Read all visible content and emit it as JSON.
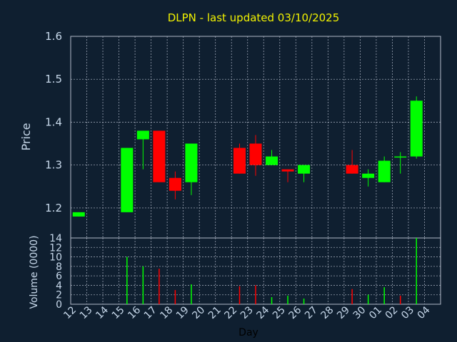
{
  "title": "DLPN - last updated 03/10/2025",
  "colors": {
    "background": "#0f1f30",
    "up": "#00ff00",
    "down": "#ff0000",
    "grid": "#b0b8c8",
    "axis": "#c7d8ea",
    "title": "#f2f200"
  },
  "chart_data": [
    {
      "type": "candlestick",
      "ylabel": "Price",
      "ylim": [
        1.13,
        1.6
      ],
      "yticks": [
        1.2,
        1.3,
        1.4,
        1.5,
        1.6
      ],
      "grid": true,
      "categories": [
        "12",
        "13",
        "14",
        "15",
        "16",
        "17",
        "18",
        "19",
        "20",
        "21",
        "22",
        "23",
        "24",
        "25",
        "26",
        "27",
        "28",
        "29",
        "30",
        "01",
        "02",
        "03",
        "04"
      ],
      "candles": [
        {
          "x": "12",
          "open": 1.18,
          "high": 1.19,
          "low": 1.18,
          "close": 1.19
        },
        {
          "x": "15",
          "open": 1.19,
          "high": 1.34,
          "low": 1.19,
          "close": 1.34
        },
        {
          "x": "16",
          "open": 1.36,
          "high": 1.38,
          "low": 1.29,
          "close": 1.38
        },
        {
          "x": "17",
          "open": 1.38,
          "high": 1.38,
          "low": 1.26,
          "close": 1.26
        },
        {
          "x": "18",
          "open": 1.27,
          "high": 1.285,
          "low": 1.22,
          "close": 1.24
        },
        {
          "x": "19",
          "open": 1.26,
          "high": 1.35,
          "low": 1.23,
          "close": 1.35
        },
        {
          "x": "22",
          "open": 1.34,
          "high": 1.35,
          "low": 1.28,
          "close": 1.28
        },
        {
          "x": "23",
          "open": 1.35,
          "high": 1.37,
          "low": 1.275,
          "close": 1.3
        },
        {
          "x": "24",
          "open": 1.3,
          "high": 1.335,
          "low": 1.3,
          "close": 1.32
        },
        {
          "x": "25",
          "open": 1.29,
          "high": 1.29,
          "low": 1.26,
          "close": 1.285
        },
        {
          "x": "26",
          "open": 1.28,
          "high": 1.3,
          "low": 1.26,
          "close": 1.3
        },
        {
          "x": "29",
          "open": 1.3,
          "high": 1.335,
          "low": 1.28,
          "close": 1.28
        },
        {
          "x": "30",
          "open": 1.27,
          "high": 1.29,
          "low": 1.25,
          "close": 1.28
        },
        {
          "x": "01",
          "open": 1.26,
          "high": 1.32,
          "low": 1.26,
          "close": 1.31
        },
        {
          "x": "02",
          "open": 1.32,
          "high": 1.33,
          "low": 1.28,
          "close": 1.32
        },
        {
          "x": "03",
          "open": 1.32,
          "high": 1.46,
          "low": 1.315,
          "close": 1.45
        }
      ]
    },
    {
      "type": "bar",
      "ylabel": "Volume (0000)",
      "xlabel": "Day",
      "ylim": [
        0,
        14
      ],
      "yticks": [
        0,
        2,
        4,
        6,
        8,
        10,
        12,
        14
      ],
      "grid": true,
      "categories": [
        "12",
        "13",
        "14",
        "15",
        "16",
        "17",
        "18",
        "19",
        "20",
        "21",
        "22",
        "23",
        "24",
        "25",
        "26",
        "27",
        "28",
        "29",
        "30",
        "01",
        "02",
        "03",
        "04"
      ],
      "bars": [
        {
          "x": "15",
          "value": 10,
          "dir": "up"
        },
        {
          "x": "16",
          "value": 8,
          "dir": "up"
        },
        {
          "x": "17",
          "value": 7.5,
          "dir": "down"
        },
        {
          "x": "18",
          "value": 3,
          "dir": "down"
        },
        {
          "x": "19",
          "value": 4.2,
          "dir": "up"
        },
        {
          "x": "22",
          "value": 3.8,
          "dir": "down"
        },
        {
          "x": "23",
          "value": 4,
          "dir": "down"
        },
        {
          "x": "24",
          "value": 1.5,
          "dir": "up"
        },
        {
          "x": "25",
          "value": 1.8,
          "dir": "up"
        },
        {
          "x": "26",
          "value": 1.2,
          "dir": "up"
        },
        {
          "x": "29",
          "value": 3.2,
          "dir": "down"
        },
        {
          "x": "30",
          "value": 2,
          "dir": "up"
        },
        {
          "x": "01",
          "value": 3.6,
          "dir": "up"
        },
        {
          "x": "02",
          "value": 1.8,
          "dir": "down"
        },
        {
          "x": "03",
          "value": 14,
          "dir": "up"
        }
      ]
    }
  ]
}
